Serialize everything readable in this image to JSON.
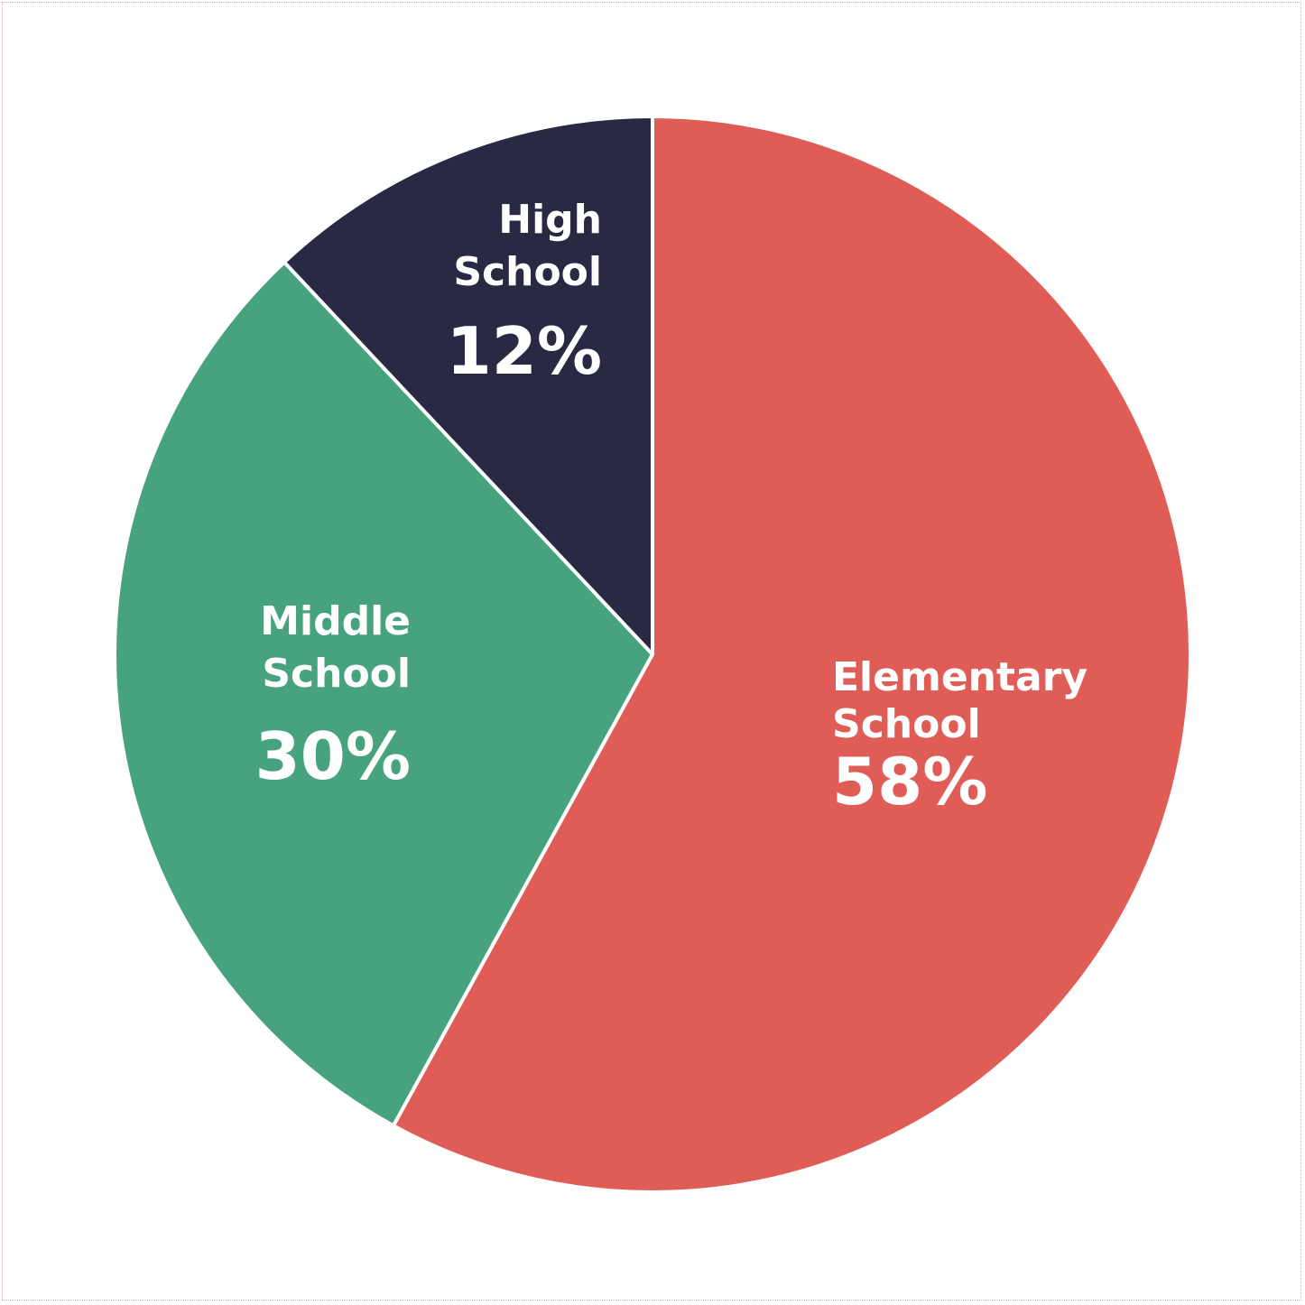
{
  "chart_data": {
    "type": "pie",
    "title": "",
    "slices": [
      {
        "name_lines": [
          "Elementary",
          "School"
        ],
        "value": 58,
        "label": "58%",
        "color": "#df5d56"
      },
      {
        "name_lines": [
          "Middle",
          "School"
        ],
        "value": 30,
        "label": "30%",
        "color": "#47a27e"
      },
      {
        "name_lines": [
          "High",
          "School"
        ],
        "value": 12,
        "label": "12%",
        "color": "#2a2944"
      }
    ],
    "start_angle": "top",
    "direction": "clockwise",
    "slice_border_color": "#ffffff"
  }
}
